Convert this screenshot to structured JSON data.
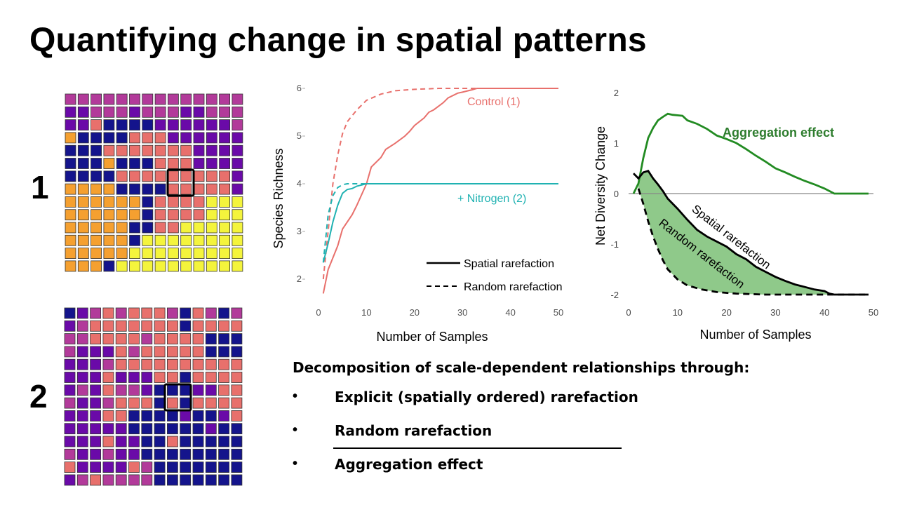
{
  "title": "Quantifying change in spatial patterns",
  "grids": [
    {
      "label": "1",
      "rows": [
        "MMMMMMMMMMMMMM",
        "PPMMMPMMMPPMMM",
        "PPSNNNNPPPPPPM",
        "ONNNNSSSPPPPPP",
        "NNNSSSSSSSPPPP",
        "NNNONNNSSSPPPP",
        "NNNNSSSSSSSSSP",
        "OOOONNNNSSSSSP",
        "OOOOOONSSSSYYY",
        "OOOOOONSSSSYYY",
        "OOOOONNSSYYYYY",
        "OOOOONYYYYYYYY",
        "OOOOOYYYYYYYYY",
        "OOONYYYYYYYYYY"
      ]
    },
    {
      "label": "2",
      "rows": [
        "NPMSMSSSMNSMNM",
        "PMSSSSSSSNSSSS",
        "MMSSSSMSSSSNNN",
        "MPPPSMSSSSSNNN",
        "PPPMSSSSSSSSSS",
        "PPPSPPPSSNSSSS",
        "PMPSMMPNNNPPSS",
        "MPPMSSSNSNSSSS",
        "PPPSSNNNNPNNPS",
        "PPPPPNNNNNNPNN",
        "PPPSPPNNSNNNNN",
        "MPPMPPNNNNNNNN",
        "SPPPPSMNNNNNNN",
        "PMSMMMMNNNNNNN"
      ]
    }
  ],
  "cell_colors": {
    "M": "#b23a9a",
    "P": "#6a0aa8",
    "N": "#14148c",
    "S": "#e8706c",
    "O": "#f5a030",
    "Y": "#f4f43c"
  },
  "chart_data": [
    {
      "type": "line",
      "xlabel": "Number  of Samples",
      "ylabel": "Species Richness",
      "xlim": [
        0,
        50
      ],
      "ylim": [
        1.7,
        6.1
      ],
      "xticks": [
        0,
        10,
        20,
        30,
        40,
        50
      ],
      "yticks": [
        2,
        3,
        4,
        5,
        6
      ],
      "grid": false,
      "legend": {
        "position": "bottom-right",
        "entries": [
          {
            "label": "Spatial rarefaction",
            "style": "solid"
          },
          {
            "label": "Random rarefaction",
            "style": "dashed"
          }
        ]
      },
      "series": [
        {
          "name": "Control (1)",
          "color": "#e8706c",
          "style": "solid",
          "x": [
            1,
            2,
            4,
            5,
            7,
            8,
            10,
            11,
            13,
            14,
            16,
            18,
            19,
            20,
            22,
            23,
            24,
            26,
            27,
            29,
            30,
            32,
            33,
            35,
            40,
            50
          ],
          "y": [
            1.7,
            2.2,
            2.7,
            3.05,
            3.35,
            3.55,
            4.0,
            4.35,
            4.55,
            4.72,
            4.85,
            5.0,
            5.1,
            5.22,
            5.38,
            5.5,
            5.55,
            5.7,
            5.8,
            5.9,
            5.92,
            5.97,
            6.0,
            6.0,
            6.0,
            6.0
          ]
        },
        {
          "name": "",
          "color": "#e8706c",
          "style": "dashed",
          "x": [
            1,
            2,
            3,
            4,
            5,
            6,
            8,
            10,
            13,
            16,
            20,
            25,
            30,
            50
          ],
          "y": [
            2.0,
            3.0,
            4.0,
            4.6,
            5.05,
            5.3,
            5.55,
            5.75,
            5.88,
            5.95,
            5.98,
            6.0,
            6.0,
            6.0
          ]
        },
        {
          "name": "+ Nitrogen (2)",
          "color": "#20b2b2",
          "style": "solid",
          "x": [
            1,
            2,
            3,
            4,
            5,
            6,
            7,
            8,
            10,
            15,
            30,
            50
          ],
          "y": [
            2.35,
            2.75,
            3.2,
            3.55,
            3.8,
            3.88,
            3.9,
            3.95,
            4.0,
            4.0,
            4.0,
            4.0
          ]
        },
        {
          "name": "",
          "color": "#20b2b2",
          "style": "dashed",
          "x": [
            1,
            2,
            3,
            4,
            5,
            6,
            8,
            10,
            20,
            50
          ],
          "y": [
            2.35,
            3.35,
            3.75,
            3.92,
            3.98,
            4.0,
            4.0,
            4.0,
            4.0,
            4.0
          ]
        }
      ]
    },
    {
      "type": "line",
      "xlabel": "Number  of Samples",
      "ylabel": "Net Diversity Change",
      "xlim": [
        0,
        50
      ],
      "ylim": [
        -2.1,
        2.2
      ],
      "xticks": [
        0,
        10,
        20,
        30,
        40,
        50
      ],
      "yticks": [
        2,
        1,
        0,
        -1,
        -2
      ],
      "grid": false,
      "zero_line": true,
      "series": [
        {
          "name": "Aggregation effect",
          "color": "#228B22",
          "style": "solid",
          "x": [
            1,
            2,
            3,
            4,
            5,
            6,
            7,
            8,
            9,
            10,
            11,
            12,
            14,
            16,
            18,
            20,
            22,
            24,
            26,
            28,
            30,
            32,
            34,
            36,
            38,
            40,
            41,
            42,
            45,
            49
          ],
          "y": [
            0.0,
            0.2,
            0.7,
            1.1,
            1.3,
            1.45,
            1.52,
            1.58,
            1.56,
            1.55,
            1.54,
            1.45,
            1.38,
            1.28,
            1.15,
            1.08,
            1.0,
            0.88,
            0.75,
            0.63,
            0.5,
            0.42,
            0.33,
            0.25,
            0.18,
            0.1,
            0.05,
            0.0,
            0.0,
            0.0
          ]
        },
        {
          "name": "Spatial rarefaction",
          "color": "#000000",
          "style": "solid",
          "x": [
            1,
            2,
            3,
            4,
            5,
            6,
            7,
            8,
            10,
            12,
            14,
            16,
            18,
            20,
            22,
            24,
            26,
            28,
            30,
            32,
            34,
            36,
            38,
            40,
            41,
            42,
            45,
            49
          ],
          "y": [
            0.4,
            0.3,
            0.42,
            0.45,
            0.3,
            0.18,
            0.05,
            -0.1,
            -0.3,
            -0.52,
            -0.72,
            -0.85,
            -0.95,
            -1.05,
            -1.2,
            -1.3,
            -1.45,
            -1.55,
            -1.65,
            -1.73,
            -1.8,
            -1.85,
            -1.9,
            -1.93,
            -1.98,
            -2.0,
            -2.0,
            -2.0
          ]
        },
        {
          "name": "Random rarefaction",
          "color": "#000000",
          "style": "dashed",
          "x": [
            2,
            3,
            4,
            5,
            6,
            7,
            8,
            10,
            12,
            15,
            18,
            22,
            28,
            35,
            42,
            49
          ],
          "y": [
            0.1,
            -0.2,
            -0.55,
            -0.85,
            -1.1,
            -1.32,
            -1.5,
            -1.7,
            -1.82,
            -1.9,
            -1.95,
            -1.98,
            -2.0,
            -2.0,
            -2.0,
            -2.0
          ]
        }
      ],
      "fill_between": {
        "upper": "Spatial rarefaction",
        "lower": "Random rarefaction",
        "color": "#8fc98a"
      }
    }
  ],
  "text": {
    "decomposition": "Decomposition of scale-dependent relationships through:",
    "bullets": [
      "Explicit (spatially ordered) rarefaction",
      "Random rarefaction",
      "Aggregation effect"
    ],
    "bullet_symbol": "•"
  }
}
